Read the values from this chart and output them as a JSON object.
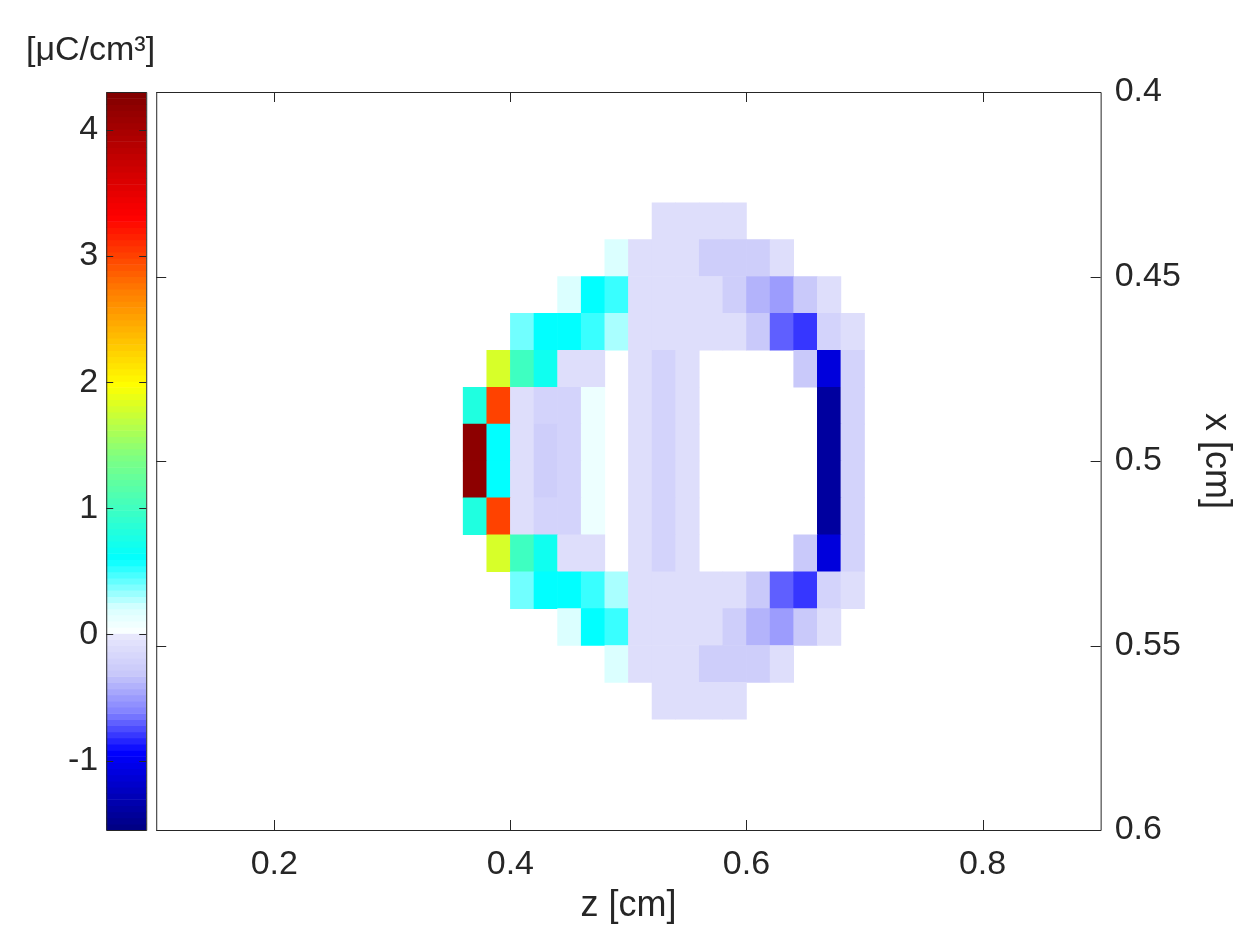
{
  "chart_data": {
    "type": "scatter",
    "xlabel": "z [cm]",
    "ylabel": "x [cm]",
    "clabel": "[μC/cm³]",
    "marker": "square",
    "xlim": [
      0.1,
      0.9
    ],
    "xticks": [
      0.2,
      0.4,
      0.6,
      0.8
    ],
    "ylim": [
      0.6,
      0.4
    ],
    "yticks": [
      0.4,
      0.45,
      0.5,
      0.55,
      0.6
    ],
    "clim": [
      -1.55,
      4.3
    ],
    "cticks": [
      -1,
      0,
      1,
      2,
      3,
      4
    ],
    "x": [
      0.53,
      0.55,
      0.57,
      0.59,
      0.49,
      0.51,
      0.53,
      0.55,
      0.57,
      0.59,
      0.61,
      0.63,
      0.45,
      0.47,
      0.49,
      0.51,
      0.53,
      0.55,
      0.57,
      0.59,
      0.61,
      0.63,
      0.65,
      0.67,
      0.41,
      0.43,
      0.45,
      0.47,
      0.49,
      0.51,
      0.53,
      0.55,
      0.57,
      0.59,
      0.61,
      0.63,
      0.65,
      0.67,
      0.69,
      0.39,
      0.41,
      0.43,
      0.45,
      0.47,
      0.51,
      0.53,
      0.55,
      0.65,
      0.67,
      0.69,
      0.37,
      0.39,
      0.41,
      0.43,
      0.45,
      0.47,
      0.51,
      0.53,
      0.55,
      0.67,
      0.69,
      0.37,
      0.39,
      0.41,
      0.43,
      0.45,
      0.47,
      0.51,
      0.53,
      0.55,
      0.67,
      0.69,
      0.37,
      0.39,
      0.41,
      0.43,
      0.45,
      0.47,
      0.51,
      0.53,
      0.55,
      0.67,
      0.69,
      0.37,
      0.39,
      0.41,
      0.43,
      0.45,
      0.47,
      0.51,
      0.53,
      0.55,
      0.67,
      0.69,
      0.39,
      0.41,
      0.43,
      0.45,
      0.47,
      0.51,
      0.53,
      0.55,
      0.65,
      0.67,
      0.69,
      0.41,
      0.43,
      0.45,
      0.47,
      0.49,
      0.51,
      0.53,
      0.55,
      0.57,
      0.59,
      0.61,
      0.63,
      0.65,
      0.67,
      0.69,
      0.45,
      0.47,
      0.49,
      0.51,
      0.53,
      0.55,
      0.57,
      0.59,
      0.61,
      0.63,
      0.65,
      0.67,
      0.49,
      0.51,
      0.53,
      0.55,
      0.57,
      0.59,
      0.61,
      0.63,
      0.53,
      0.55,
      0.57,
      0.59
    ],
    "values": [
      0.435,
      0.435,
      0.435,
      0.435,
      0.445,
      0.445,
      0.445,
      0.445,
      0.445,
      0.445,
      0.445,
      0.445,
      0.455,
      0.455,
      0.455,
      0.455,
      0.455,
      0.455,
      0.455,
      0.455,
      0.455,
      0.455,
      0.455,
      0.455,
      0.465,
      0.465,
      0.465,
      0.465,
      0.465,
      0.465,
      0.465,
      0.465,
      0.465,
      0.465,
      0.465,
      0.465,
      0.465,
      0.465,
      0.465,
      0.475,
      0.475,
      0.475,
      0.475,
      0.475,
      0.475,
      0.475,
      0.475,
      0.475,
      0.475,
      0.475,
      0.485,
      0.485,
      0.485,
      0.485,
      0.485,
      0.485,
      0.485,
      0.485,
      0.485,
      0.485,
      0.485,
      0.495,
      0.495,
      0.495,
      0.495,
      0.495,
      0.495,
      0.495,
      0.495,
      0.495,
      0.495,
      0.495,
      0.505,
      0.505,
      0.505,
      0.505,
      0.505,
      0.505,
      0.505,
      0.505,
      0.505,
      0.505,
      0.505,
      0.515,
      0.515,
      0.515,
      0.515,
      0.515,
      0.515,
      0.515,
      0.515,
      0.515,
      0.515,
      0.515,
      0.525,
      0.525,
      0.525,
      0.525,
      0.525,
      0.525,
      0.525,
      0.525,
      0.525,
      0.525,
      0.525,
      0.535,
      0.535,
      0.535,
      0.535,
      0.535,
      0.535,
      0.535,
      0.535,
      0.535,
      0.535,
      0.535,
      0.535,
      0.535,
      0.535,
      0.535,
      0.545,
      0.545,
      0.545,
      0.545,
      0.545,
      0.545,
      0.545,
      0.545,
      0.545,
      0.545,
      0.545,
      0.545,
      0.555,
      0.555,
      0.555,
      0.555,
      0.555,
      0.555,
      0.555,
      0.555,
      0.565,
      0.565,
      0.565,
      0.565
    ],
    "cvalues": [
      -0.1,
      -0.1,
      -0.1,
      -0.1,
      0.2,
      -0.1,
      -0.1,
      -0.1,
      -0.25,
      -0.25,
      -0.25,
      -0.1,
      0.2,
      0.6,
      0.5,
      -0.1,
      -0.1,
      -0.1,
      -0.1,
      -0.25,
      -0.4,
      -0.5,
      -0.3,
      -0.1,
      0.4,
      0.6,
      0.6,
      0.5,
      0.3,
      -0.1,
      -0.1,
      -0.1,
      -0.1,
      -0.1,
      -0.3,
      -0.7,
      -0.8,
      -0.2,
      -0.1,
      1.8,
      1.0,
      0.7,
      -0.1,
      -0.1,
      -0.1,
      -0.2,
      -0.1,
      -0.3,
      -1.1,
      -0.2,
      0.8,
      3.0,
      -0.1,
      -0.2,
      -0.2,
      0.1,
      -0.1,
      -0.2,
      -0.1,
      -1.4,
      -0.2,
      4.2,
      0.6,
      -0.1,
      -0.25,
      -0.2,
      0.1,
      -0.1,
      -0.2,
      -0.1,
      -1.4,
      -0.2,
      4.2,
      0.6,
      -0.1,
      -0.25,
      -0.2,
      0.1,
      -0.1,
      -0.2,
      -0.1,
      -1.4,
      -0.2,
      0.8,
      3.0,
      -0.1,
      -0.2,
      -0.2,
      0.1,
      -0.1,
      -0.2,
      -0.1,
      -1.4,
      -0.2,
      1.8,
      1.0,
      0.7,
      -0.1,
      -0.1,
      -0.1,
      -0.2,
      -0.1,
      -0.3,
      -1.1,
      -0.2,
      0.4,
      0.6,
      0.6,
      0.5,
      0.3,
      -0.1,
      -0.1,
      -0.1,
      -0.1,
      -0.1,
      -0.3,
      -0.7,
      -0.8,
      -0.2,
      -0.1,
      0.2,
      0.6,
      0.5,
      -0.1,
      -0.1,
      -0.1,
      -0.1,
      -0.25,
      -0.4,
      -0.5,
      -0.3,
      -0.1,
      0.2,
      -0.1,
      -0.1,
      -0.1,
      -0.25,
      -0.25,
      -0.25,
      -0.1,
      -0.1,
      -0.1,
      -0.1,
      -0.1
    ]
  }
}
